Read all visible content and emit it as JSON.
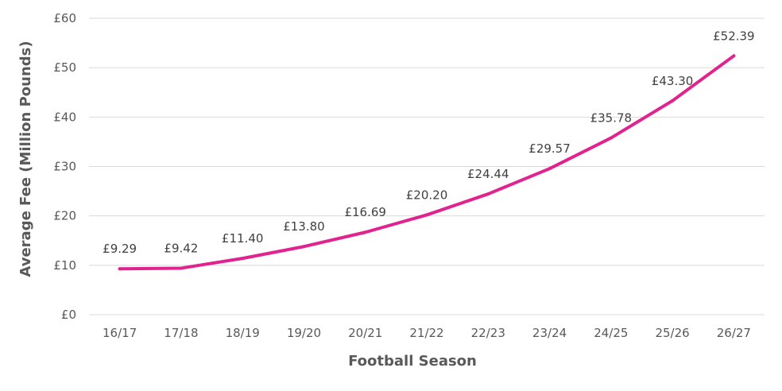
{
  "chart_data": {
    "type": "line",
    "title": "",
    "xlabel": "Football Season",
    "ylabel": "Average Fee (Million Pounds)",
    "categories": [
      "16/17",
      "17/18",
      "18/19",
      "19/20",
      "20/21",
      "21/22",
      "22/23",
      "23/24",
      "24/25",
      "25/26",
      "26/27"
    ],
    "series": [
      {
        "values": [
          9.29,
          9.42,
          11.4,
          13.8,
          16.69,
          20.2,
          24.44,
          29.57,
          35.78,
          43.3,
          52.39
        ],
        "data_labels": [
          "£9.29",
          "£9.42",
          "£11.40",
          "£13.80",
          "£16.69",
          "£20.20",
          "£24.44",
          "£29.57",
          "£35.78",
          "£43.30",
          "£52.39"
        ],
        "color": "#e0238f"
      }
    ],
    "ylim": [
      0,
      60
    ],
    "yticks": [
      0,
      10,
      20,
      30,
      40,
      50,
      60
    ],
    "ytick_labels": [
      "£0",
      "£10",
      "£20",
      "£30",
      "£40",
      "£50",
      "£60"
    ],
    "grid": true,
    "legend": "none",
    "colors": {
      "line": "#e0238f",
      "grid": "#d9d9d9",
      "axis_text": "#595959"
    }
  }
}
